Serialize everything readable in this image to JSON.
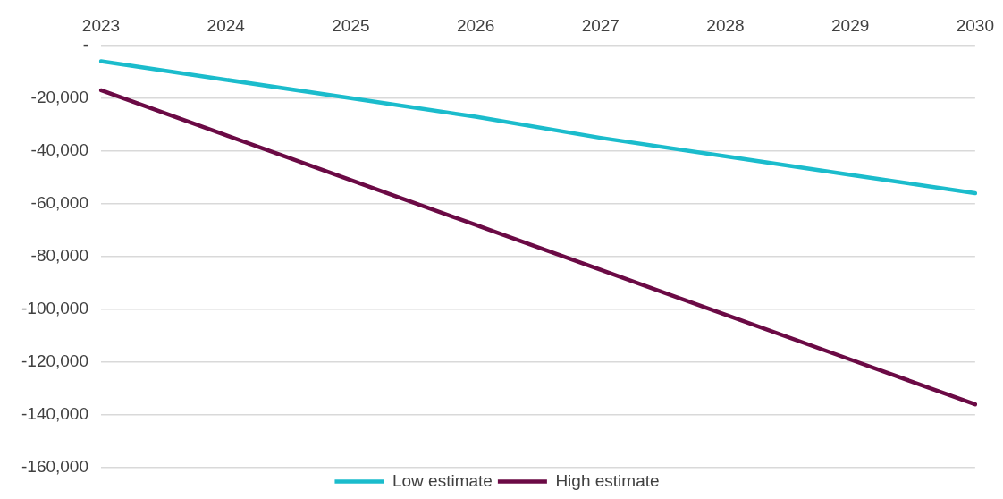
{
  "chart_data": {
    "type": "line",
    "categories": [
      "2023",
      "2024",
      "2025",
      "2026",
      "2027",
      "2028",
      "2029",
      "2030"
    ],
    "series": [
      {
        "name": "Low estimate",
        "color": "#1bbccc",
        "values": [
          -6000,
          -13000,
          -20000,
          -27000,
          -35000,
          -42000,
          -49000,
          -56000
        ]
      },
      {
        "name": "High estimate",
        "color": "#6b0a45",
        "values": [
          -17000,
          -34000,
          -51000,
          -68000,
          -85000,
          -102000,
          -119000,
          -136000
        ]
      }
    ],
    "ylim": [
      -160000,
      0
    ],
    "yticks": [
      {
        "value": -160000,
        "label": "-160,000"
      },
      {
        "value": -140000,
        "label": "-140,000"
      },
      {
        "value": -120000,
        "label": "-120,000"
      },
      {
        "value": -100000,
        "label": "-100,000"
      },
      {
        "value": -80000,
        "label": "-80,000"
      },
      {
        "value": -60000,
        "label": "-60,000"
      },
      {
        "value": -40000,
        "label": "-40,000"
      },
      {
        "value": -20000,
        "label": "-20,000"
      },
      {
        "value": 0,
        "label": "-"
      }
    ],
    "grid": "y",
    "legend": "bottom",
    "marker": "none",
    "line_style": "solid"
  }
}
